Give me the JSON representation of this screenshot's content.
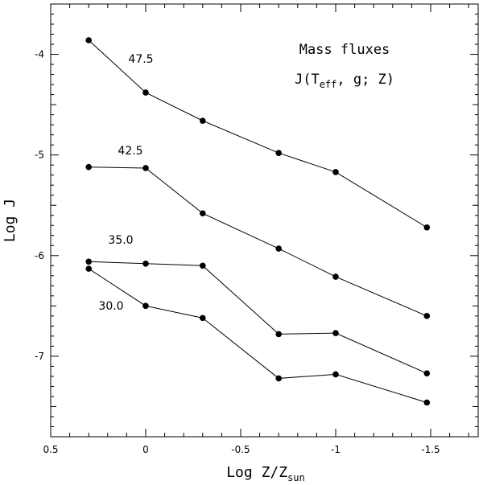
{
  "chart_data": {
    "type": "line",
    "title": "Mass fluxes",
    "subtitle_parts": {
      "prefix": "J(T",
      "sub": "eff",
      "suffix": ", g; Z)"
    },
    "xlabel_main": "Log Z/Z",
    "xlabel_sub": "sun",
    "ylabel": "Log J",
    "xlim": [
      0.5,
      -1.75
    ],
    "ylim": [
      -7.8,
      -3.5
    ],
    "x_ticks": [
      0.5,
      0,
      -0.5,
      -1,
      -1.5
    ],
    "x_tick_labels": [
      "0.5",
      "0",
      "-0.5",
      "-1",
      "-1.5"
    ],
    "y_ticks": [
      -4,
      -5,
      -6,
      -7
    ],
    "y_tick_labels": [
      "-4",
      "-5",
      "-6",
      "-7"
    ],
    "grid": false,
    "series": [
      {
        "name": "47.5",
        "x": [
          0.3,
          0,
          -0.3,
          -0.7,
          -1,
          -1.48
        ],
        "y": [
          -3.86,
          -4.38,
          -4.66,
          -4.98,
          -5.17,
          -5.72
        ]
      },
      {
        "name": "42.5",
        "x": [
          0.3,
          0,
          -0.3,
          -0.7,
          -1,
          -1.48
        ],
        "y": [
          -5.12,
          -5.13,
          -5.58,
          -5.93,
          -6.21,
          -6.6
        ]
      },
      {
        "name": "35.0",
        "x": [
          0.3,
          0,
          -0.3,
          -0.7,
          -1,
          -1.48
        ],
        "y": [
          -6.06,
          -6.08,
          -6.1,
          -6.78,
          -6.77,
          -7.17
        ]
      },
      {
        "name": "30.0",
        "x": [
          0.3,
          0,
          -0.3,
          -0.7,
          -1,
          -1.48
        ],
        "y": [
          -6.13,
          -6.5,
          -6.62,
          -7.22,
          -7.18,
          -7.46
        ]
      }
    ]
  }
}
